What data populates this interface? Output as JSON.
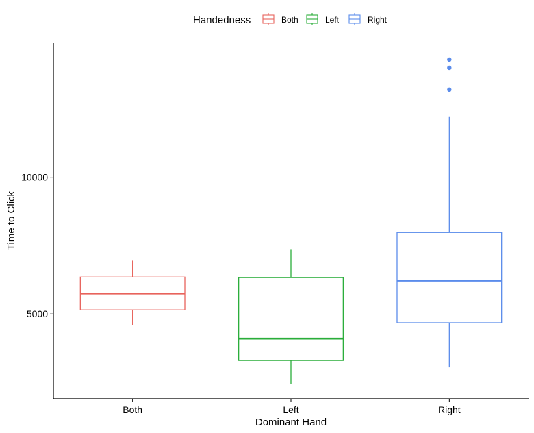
{
  "chart_data": {
    "type": "boxplot",
    "xlabel": "Dominant Hand",
    "ylabel": "Time to Click",
    "categories": [
      "Both",
      "Left",
      "Right"
    ],
    "y_ticks": [
      5000,
      10000
    ],
    "y_tick_labels": [
      "5000",
      "10000"
    ],
    "ylim": [
      1900,
      14900
    ],
    "grid": false,
    "legend": {
      "title": "Handedness",
      "position": "top",
      "entries": [
        "Both",
        "Left",
        "Right"
      ]
    },
    "colors": {
      "Both": "#e8635c",
      "Left": "#2aad3a",
      "Right": "#5b8ceb"
    },
    "boxes": [
      {
        "category": "Both",
        "whisker_low": 4600,
        "q1": 5150,
        "median": 5750,
        "q3": 6350,
        "whisker_high": 6950,
        "outliers": []
      },
      {
        "category": "Left",
        "whisker_low": 2450,
        "q1": 3300,
        "median": 4100,
        "q3": 6330,
        "whisker_high": 7350,
        "outliers": []
      },
      {
        "category": "Right",
        "whisker_low": 3050,
        "q1": 4680,
        "median": 6220,
        "q3": 7980,
        "whisker_high": 12200,
        "outliers": [
          13200,
          14000,
          14300
        ]
      }
    ]
  }
}
